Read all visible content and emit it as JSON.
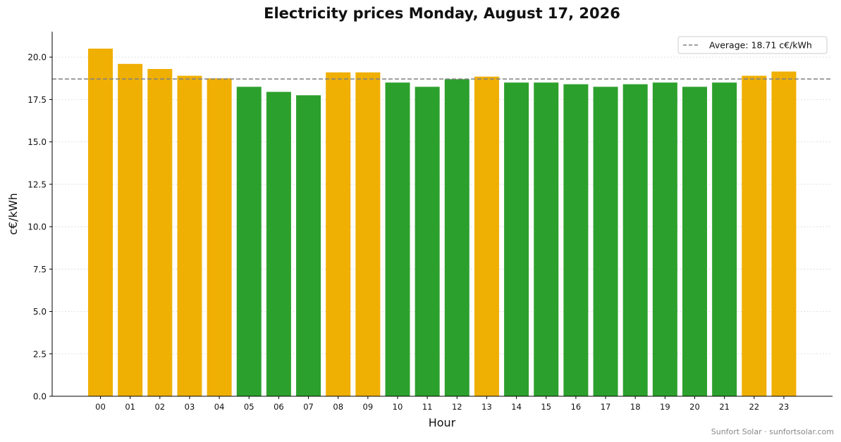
{
  "chart_data": {
    "type": "bar",
    "title": "Electricity prices Monday, August 17, 2026",
    "xlabel": "Hour",
    "ylabel": "c€/kWh",
    "ylim": [
      0,
      21.5
    ],
    "yticks": [
      "0.0",
      "2.5",
      "5.0",
      "7.5",
      "10.0",
      "12.5",
      "15.0",
      "17.5",
      "20.0"
    ],
    "grid": "horizontal dotted",
    "categories": [
      "00",
      "01",
      "02",
      "03",
      "04",
      "05",
      "06",
      "07",
      "08",
      "09",
      "10",
      "11",
      "12",
      "13",
      "14",
      "15",
      "16",
      "17",
      "18",
      "19",
      "20",
      "21",
      "22",
      "23"
    ],
    "values": [
      20.5,
      19.6,
      19.3,
      18.9,
      18.75,
      18.25,
      17.95,
      17.75,
      19.1,
      19.1,
      18.5,
      18.25,
      18.7,
      18.85,
      18.5,
      18.5,
      18.4,
      18.25,
      18.4,
      18.5,
      18.25,
      18.5,
      18.9,
      19.15
    ],
    "average": 18.71,
    "legend": {
      "position": "top-right",
      "entries": [
        "Average: 18.71 c€/kWh"
      ]
    },
    "colors": {
      "above_average": "#efaf03",
      "below_average": "#2ca02c",
      "average_line": "#808080"
    }
  },
  "credit": "Sunfort Solar · sunfortsolar.com"
}
